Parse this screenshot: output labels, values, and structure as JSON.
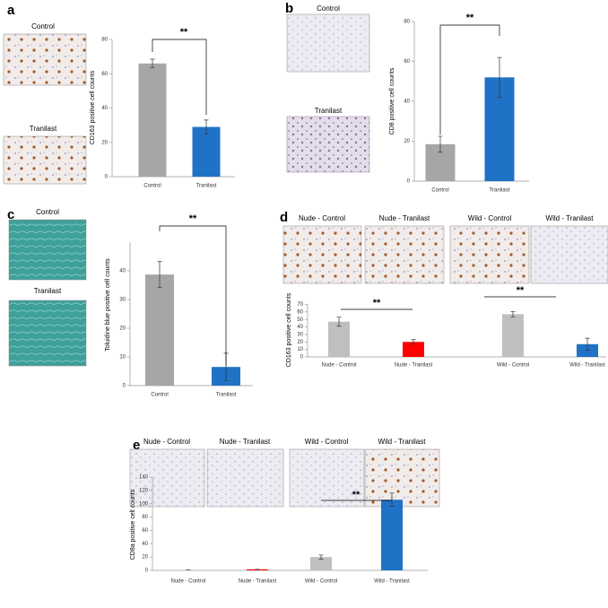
{
  "chart_data": [
    {
      "type": "bar",
      "panel": "a",
      "image_labels": [
        "Control",
        "Tranilast"
      ],
      "y_label": "CD163 positive cell counts",
      "categories": [
        "Control",
        "Tranilast"
      ],
      "values": [
        66,
        29
      ],
      "errors": [
        2.5,
        4
      ],
      "colors": [
        "#a6a6a6",
        "#2072c6"
      ],
      "ylim": [
        0,
        80
      ],
      "yticks": [
        0,
        20,
        40,
        60,
        80
      ],
      "significance": [
        "**"
      ]
    },
    {
      "type": "bar",
      "panel": "b",
      "image_labels": [
        "Control",
        "Tranilast"
      ],
      "y_label": "CD8 positive cell counts",
      "categories": [
        "Control",
        "Tranilast"
      ],
      "values": [
        18.5,
        52
      ],
      "errors": [
        4,
        10
      ],
      "colors": [
        "#a6a6a6",
        "#2072c6"
      ],
      "ylim": [
        0,
        80
      ],
      "yticks": [
        0,
        20,
        40,
        60,
        80
      ],
      "significance": [
        "**"
      ]
    },
    {
      "type": "bar",
      "panel": "c",
      "image_labels": [
        "Control",
        "Tranilast"
      ],
      "y_label": "Toluidine blue positive cell counts",
      "categories": [
        "Control",
        "Tranilast"
      ],
      "values": [
        38.7,
        6.5
      ],
      "errors": [
        4.5,
        4.8
      ],
      "colors": [
        "#a6a6a6",
        "#2072c6"
      ],
      "ylim": [
        0,
        50
      ],
      "yticks": [
        0,
        10,
        20,
        30,
        40
      ],
      "significance": [
        "**"
      ]
    },
    {
      "type": "bar",
      "panel": "d",
      "image_labels": [
        "Nude - Control",
        "Nude - Tranilast",
        "Wild - Control",
        "Wild - Tranilast"
      ],
      "y_label": "CD163  positive  cell  counts",
      "categories": [
        "Nude - Control",
        "Nude - Tranilast",
        "Wild - Control",
        "Wild - Tranilast"
      ],
      "values": [
        47,
        20,
        57,
        17
      ],
      "errors": [
        6,
        3,
        3.5,
        8
      ],
      "colors": [
        "#bfbfbf",
        "#ff0000",
        "#bfbfbf",
        "#2072c6"
      ],
      "ylim": [
        0,
        70
      ],
      "yticks": [
        0,
        10,
        20,
        30,
        40,
        50,
        60,
        70
      ],
      "significance": [
        "**",
        "**"
      ]
    },
    {
      "type": "bar",
      "panel": "e",
      "image_labels": [
        "Nude - Control",
        "Nude - Tranilast",
        "Wild - Control",
        "Wild - Tranilast"
      ],
      "y_label": "CD8a positive  cell  counts",
      "categories": [
        "Nude - Control",
        "Nude - Tranilast",
        "Wild - Control",
        "Wild - Tranilast"
      ],
      "values": [
        0.5,
        1.5,
        20,
        106
      ],
      "errors": [
        0,
        0,
        3,
        10
      ],
      "colors": [
        "#bfbfbf",
        "#ff0000",
        "#bfbfbf",
        "#2072c6"
      ],
      "ylim": [
        0,
        140
      ],
      "yticks": [
        0,
        20,
        40,
        60,
        80,
        100,
        120,
        140
      ],
      "significance": [
        "**"
      ]
    }
  ]
}
